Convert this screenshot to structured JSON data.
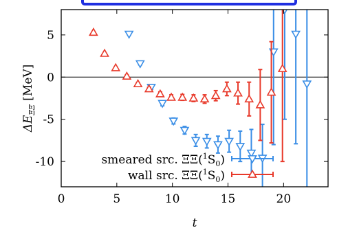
{
  "chart_data": {
    "type": "scatter",
    "xlabel": "t",
    "ylabel": "ΔE_ΞΞ [MeV]",
    "ylabel_main": "ΔE",
    "ylabel_sub": "ΞΞ",
    "ylabel_unit": "[MeV]",
    "xlim": [
      0,
      24
    ],
    "ylim": [
      -13,
      8
    ],
    "x_ticks": [
      0,
      5,
      10,
      15,
      20
    ],
    "y_ticks": [
      5,
      0,
      -5,
      -10
    ],
    "x_tick_labels": [
      "0",
      "5",
      "10",
      "15",
      "20"
    ],
    "y_tick_labels": [
      "5",
      "0",
      "-5",
      "-10"
    ],
    "zero_line": true,
    "grid": false,
    "legend_position": "bottom-left",
    "series": [
      {
        "name": "smeared src. ΞΞ(¹S₀)",
        "legend_text": "smeared src. ΞΞ(",
        "legend_suffix": "S",
        "legend_sup": "1",
        "legend_sub": "0",
        "color": "#3a8ee6",
        "marker": "triangle-down",
        "points": [
          {
            "x": 6,
            "y": 5.1,
            "err": 0.1
          },
          {
            "x": 7,
            "y": 1.6,
            "err": 0.15
          },
          {
            "x": 8,
            "y": -1.2,
            "err": 0.25
          },
          {
            "x": 9,
            "y": -3.1,
            "err": 0.3
          },
          {
            "x": 10,
            "y": -5.2,
            "err": 0.35
          },
          {
            "x": 11,
            "y": -6.3,
            "err": 0.45
          },
          {
            "x": 12,
            "y": -7.5,
            "err": 0.7
          },
          {
            "x": 13,
            "y": -7.6,
            "err": 0.8
          },
          {
            "x": 14,
            "y": -8.0,
            "err": 1.0
          },
          {
            "x": 15,
            "y": -7.6,
            "err": 1.3
          },
          {
            "x": 16,
            "y": -8.2,
            "err": 1.8
          },
          {
            "x": 17,
            "y": -9.0,
            "err": 2.8
          },
          {
            "x": 18,
            "y": -9.6,
            "err": 4.0
          },
          {
            "x": 19,
            "y": 3.0,
            "err": 11
          },
          {
            "x": 20,
            "y": 8.0,
            "err": 13
          },
          {
            "x": 21,
            "y": 5.1,
            "err": 13
          },
          {
            "x": 22,
            "y": -0.8,
            "err": 14
          }
        ]
      },
      {
        "name": "wall src. ΞΞ(¹S₀)",
        "legend_text": "wall src. ΞΞ(",
        "legend_suffix": "S",
        "legend_sup": "1",
        "legend_sub": "0",
        "color": "#e8392a",
        "marker": "triangle-up",
        "points": [
          {
            "x": 3,
            "y": 5.3,
            "err": 0.1
          },
          {
            "x": 4,
            "y": 2.8,
            "err": 0.1
          },
          {
            "x": 5,
            "y": 1.1,
            "err": 0.1
          },
          {
            "x": 6,
            "y": 0.1,
            "err": 0.15
          },
          {
            "x": 7,
            "y": -0.8,
            "err": 0.15
          },
          {
            "x": 8,
            "y": -1.4,
            "err": 0.2
          },
          {
            "x": 9,
            "y": -2.0,
            "err": 0.25
          },
          {
            "x": 10,
            "y": -2.4,
            "err": 0.3
          },
          {
            "x": 11,
            "y": -2.4,
            "err": 0.35
          },
          {
            "x": 12,
            "y": -2.5,
            "err": 0.4
          },
          {
            "x": 13,
            "y": -2.6,
            "err": 0.5
          },
          {
            "x": 14,
            "y": -2.2,
            "err": 0.6
          },
          {
            "x": 15,
            "y": -1.4,
            "err": 0.8
          },
          {
            "x": 16,
            "y": -1.9,
            "err": 1.3
          },
          {
            "x": 17,
            "y": -2.6,
            "err": 2.0
          },
          {
            "x": 18,
            "y": -3.3,
            "err": 4.2
          },
          {
            "x": 19,
            "y": -1.8,
            "err": 6.0
          },
          {
            "x": 20,
            "y": 1.0,
            "err": 11
          }
        ]
      }
    ]
  }
}
